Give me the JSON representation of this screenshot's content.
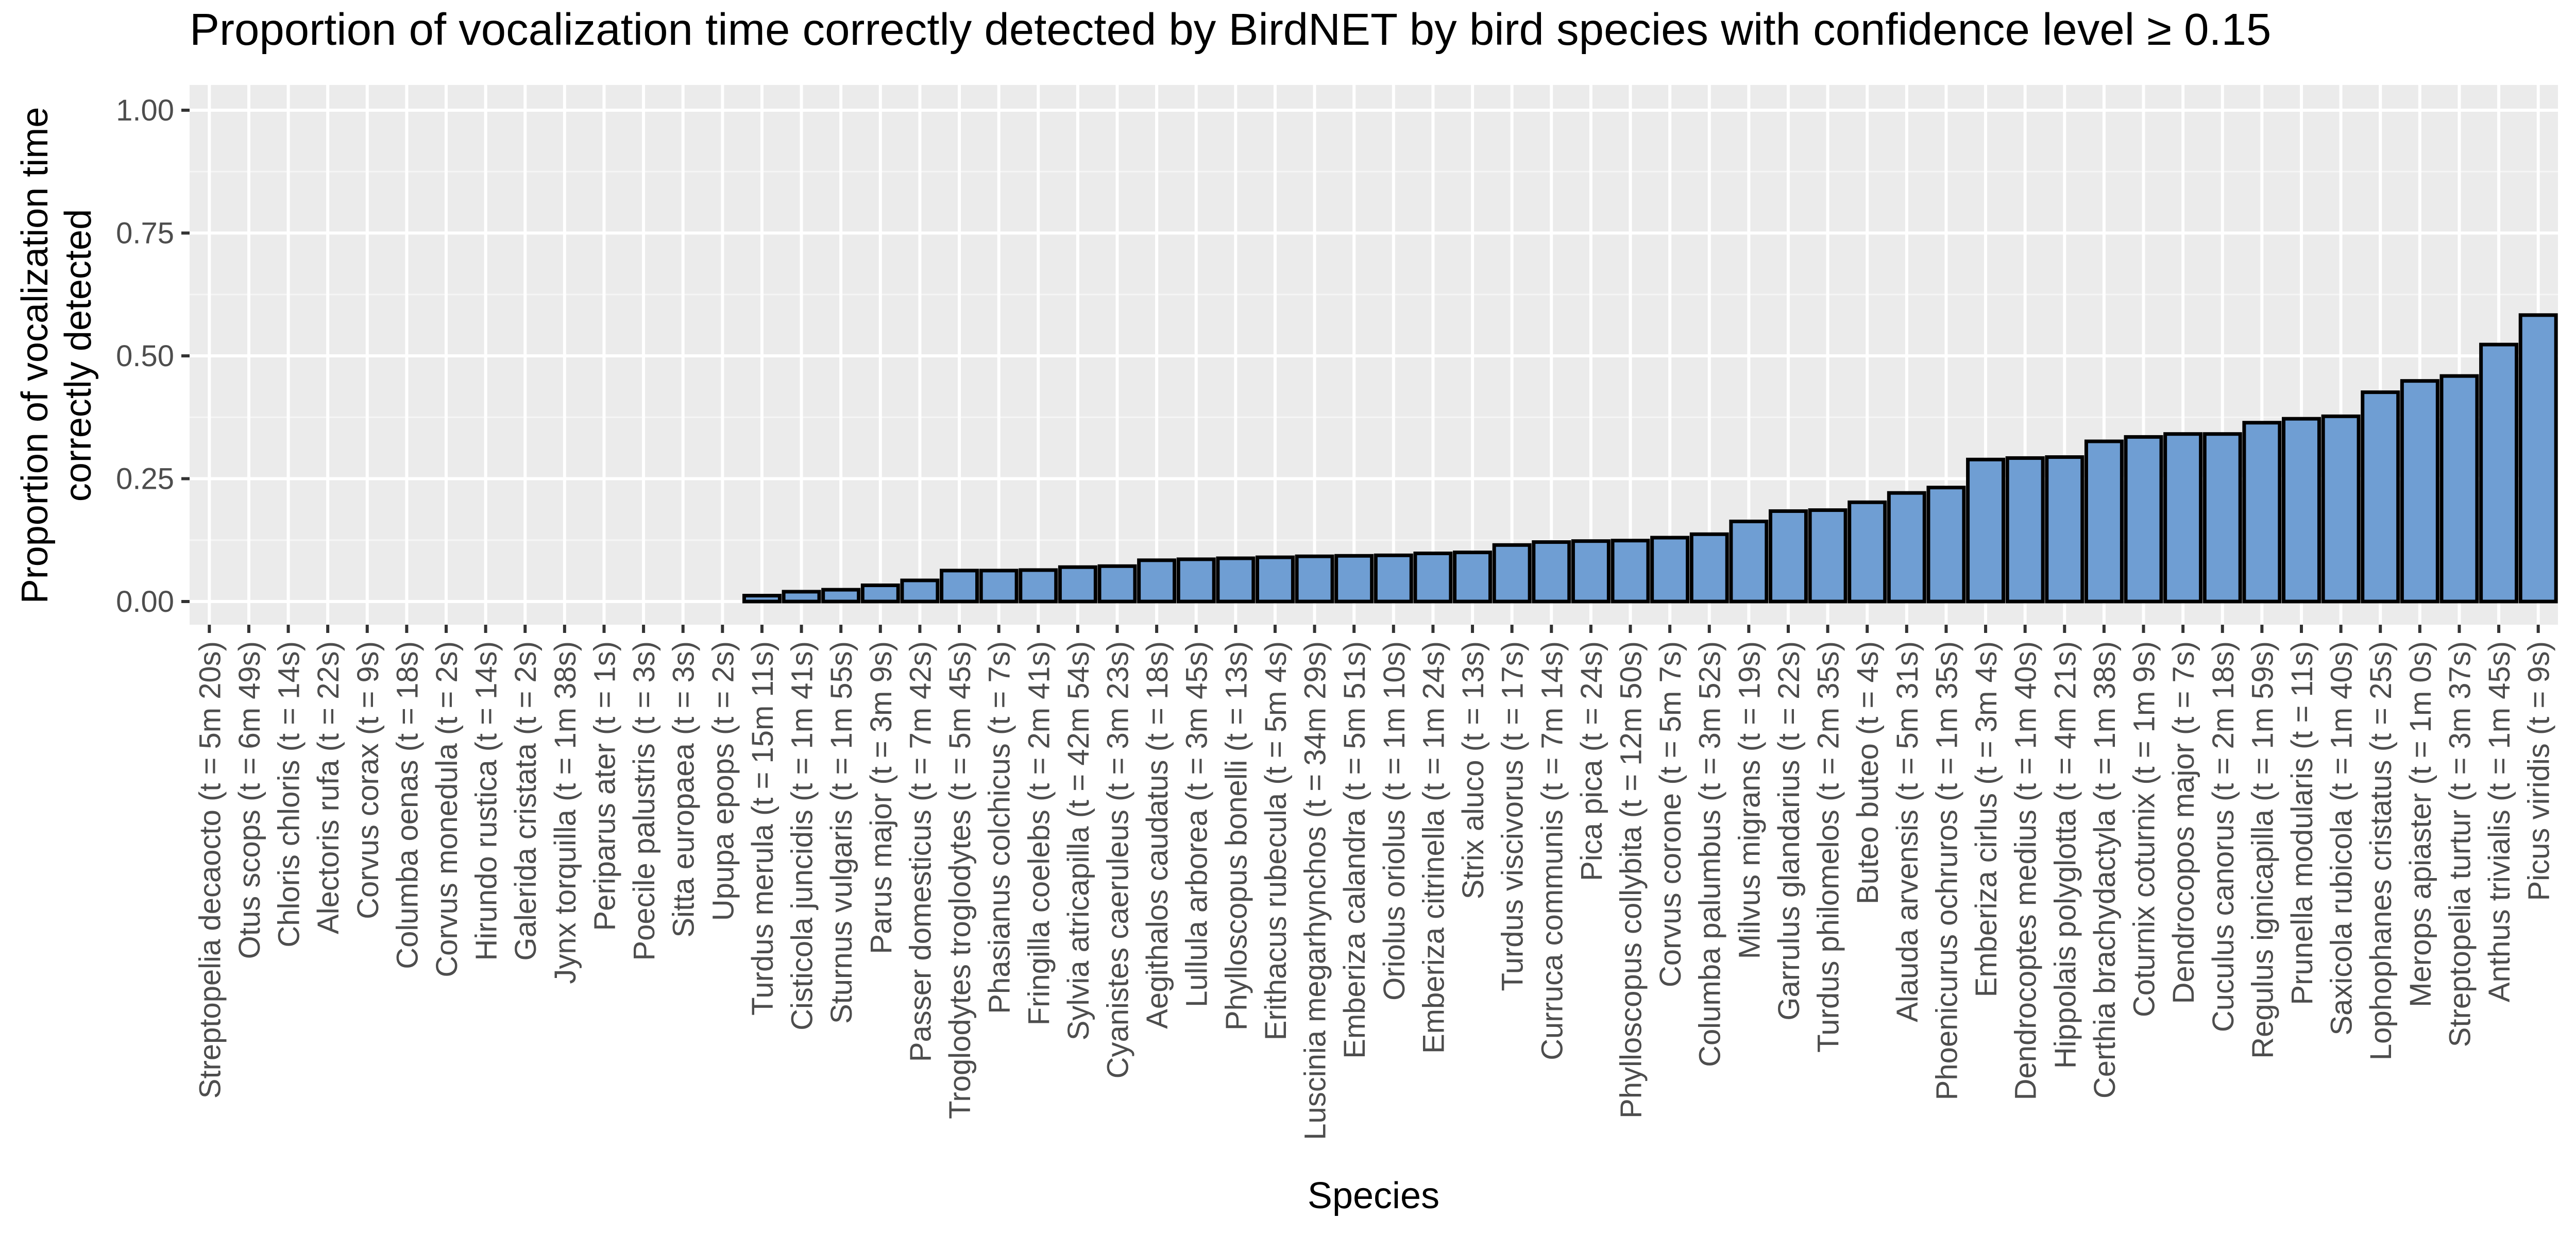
{
  "chart_data": {
    "type": "bar",
    "title": "Proportion of vocalization time correctly detected by BirdNET by bird species with confidence level ≥ 0.15",
    "xlabel": "Species",
    "ylabel_lines": [
      "Proportion of vocalization time",
      "correctly detected"
    ],
    "ylim": [
      0,
      1.05
    ],
    "y_ticks": [
      0.0,
      0.25,
      0.5,
      0.75,
      1.0
    ],
    "y_tick_labels": [
      "0.00",
      "0.25",
      "0.50",
      "0.75",
      "1.00"
    ],
    "grid": true,
    "legend": "none",
    "categories": [
      "Streptopelia decaocto (t = 5m 20s)",
      "Otus scops (t = 6m 49s)",
      "Chloris chloris (t = 14s)",
      "Alectoris rufa (t = 22s)",
      "Corvus corax (t = 9s)",
      "Columba oenas (t = 18s)",
      "Corvus monedula (t = 2s)",
      "Hirundo rustica (t = 14s)",
      "Galerida cristata (t = 2s)",
      "Jynx torquilla (t = 1m 38s)",
      "Periparus ater (t = 1s)",
      "Poecile palustris (t = 3s)",
      "Sitta europaea (t = 3s)",
      "Upupa epops (t = 2s)",
      "Turdus merula (t = 15m 11s)",
      "Cisticola juncidis (t = 1m 41s)",
      "Sturnus vulgaris (t = 1m 55s)",
      "Parus major (t = 3m 9s)",
      "Passer domesticus (t = 7m 42s)",
      "Troglodytes troglodytes (t = 5m 45s)",
      "Phasianus colchicus (t = 7s)",
      "Fringilla coelebs (t = 2m 41s)",
      "Sylvia atricapilla (t = 42m 54s)",
      "Cyanistes caeruleus (t = 3m 23s)",
      "Aegithalos caudatus (t = 18s)",
      "Lullula arborea (t = 3m 45s)",
      "Phylloscopus bonelli (t = 13s)",
      "Erithacus rubecula (t = 5m 4s)",
      "Luscinia megarhynchos (t = 34m 29s)",
      "Emberiza calandra (t = 5m 51s)",
      "Oriolus oriolus (t = 1m 10s)",
      "Emberiza citrinella (t = 1m 24s)",
      "Strix aluco (t = 13s)",
      "Turdus viscivorus (t = 17s)",
      "Curruca communis (t = 7m 14s)",
      "Pica pica (t = 24s)",
      "Phylloscopus collybita (t = 12m 50s)",
      "Corvus corone (t = 5m 7s)",
      "Columba palumbus (t = 3m 52s)",
      "Milvus migrans (t = 19s)",
      "Garrulus glandarius (t = 22s)",
      "Turdus philomelos (t = 2m 35s)",
      "Buteo buteo (t = 4s)",
      "Alauda arvensis (t = 5m 31s)",
      "Phoenicurus ochruros (t = 1m 35s)",
      "Emberiza cirlus (t = 3m 4s)",
      "Dendrocoptes medius (t = 1m 40s)",
      "Hippolais polyglotta (t = 4m 21s)",
      "Certhia brachydactyla (t = 1m 38s)",
      "Coturnix coturnix (t = 1m 9s)",
      "Dendrocopos major (t = 7s)",
      "Cuculus canorus (t = 2m 18s)",
      "Regulus ignicapilla (t = 1m 59s)",
      "Prunella modularis (t = 11s)",
      "Saxicola rubicola (t = 1m 40s)",
      "Lophophanes cristatus (t = 25s)",
      "Merops apiaster (t = 1m 0s)",
      "Streptopelia turtur (t = 3m 37s)",
      "Anthus trivialis (t = 1m 45s)",
      "Picus viridis (t = 9s)"
    ],
    "values": [
      0,
      0,
      0,
      0,
      0,
      0,
      0,
      0,
      0,
      0,
      0,
      0,
      0,
      0,
      0.012,
      0.02,
      0.024,
      0.033,
      0.043,
      0.063,
      0.063,
      0.064,
      0.07,
      0.072,
      0.084,
      0.086,
      0.088,
      0.09,
      0.092,
      0.093,
      0.094,
      0.098,
      0.1,
      0.115,
      0.121,
      0.123,
      0.124,
      0.13,
      0.137,
      0.163,
      0.184,
      0.186,
      0.202,
      0.221,
      0.232,
      0.289,
      0.292,
      0.294,
      0.326,
      0.335,
      0.341,
      0.341,
      0.364,
      0.372,
      0.377,
      0.426,
      0.449,
      0.459,
      0.523,
      0.583
    ],
    "colors": {
      "bar_fill": "#6f9ed3",
      "bar_stroke": "#000000",
      "panel_bg": "#ebebeb",
      "grid_major": "#ffffff",
      "grid_minor": "#f5f5f5",
      "text": "#000000",
      "tick_text": "#4d4d4d",
      "tick_mark": "#333333"
    }
  }
}
